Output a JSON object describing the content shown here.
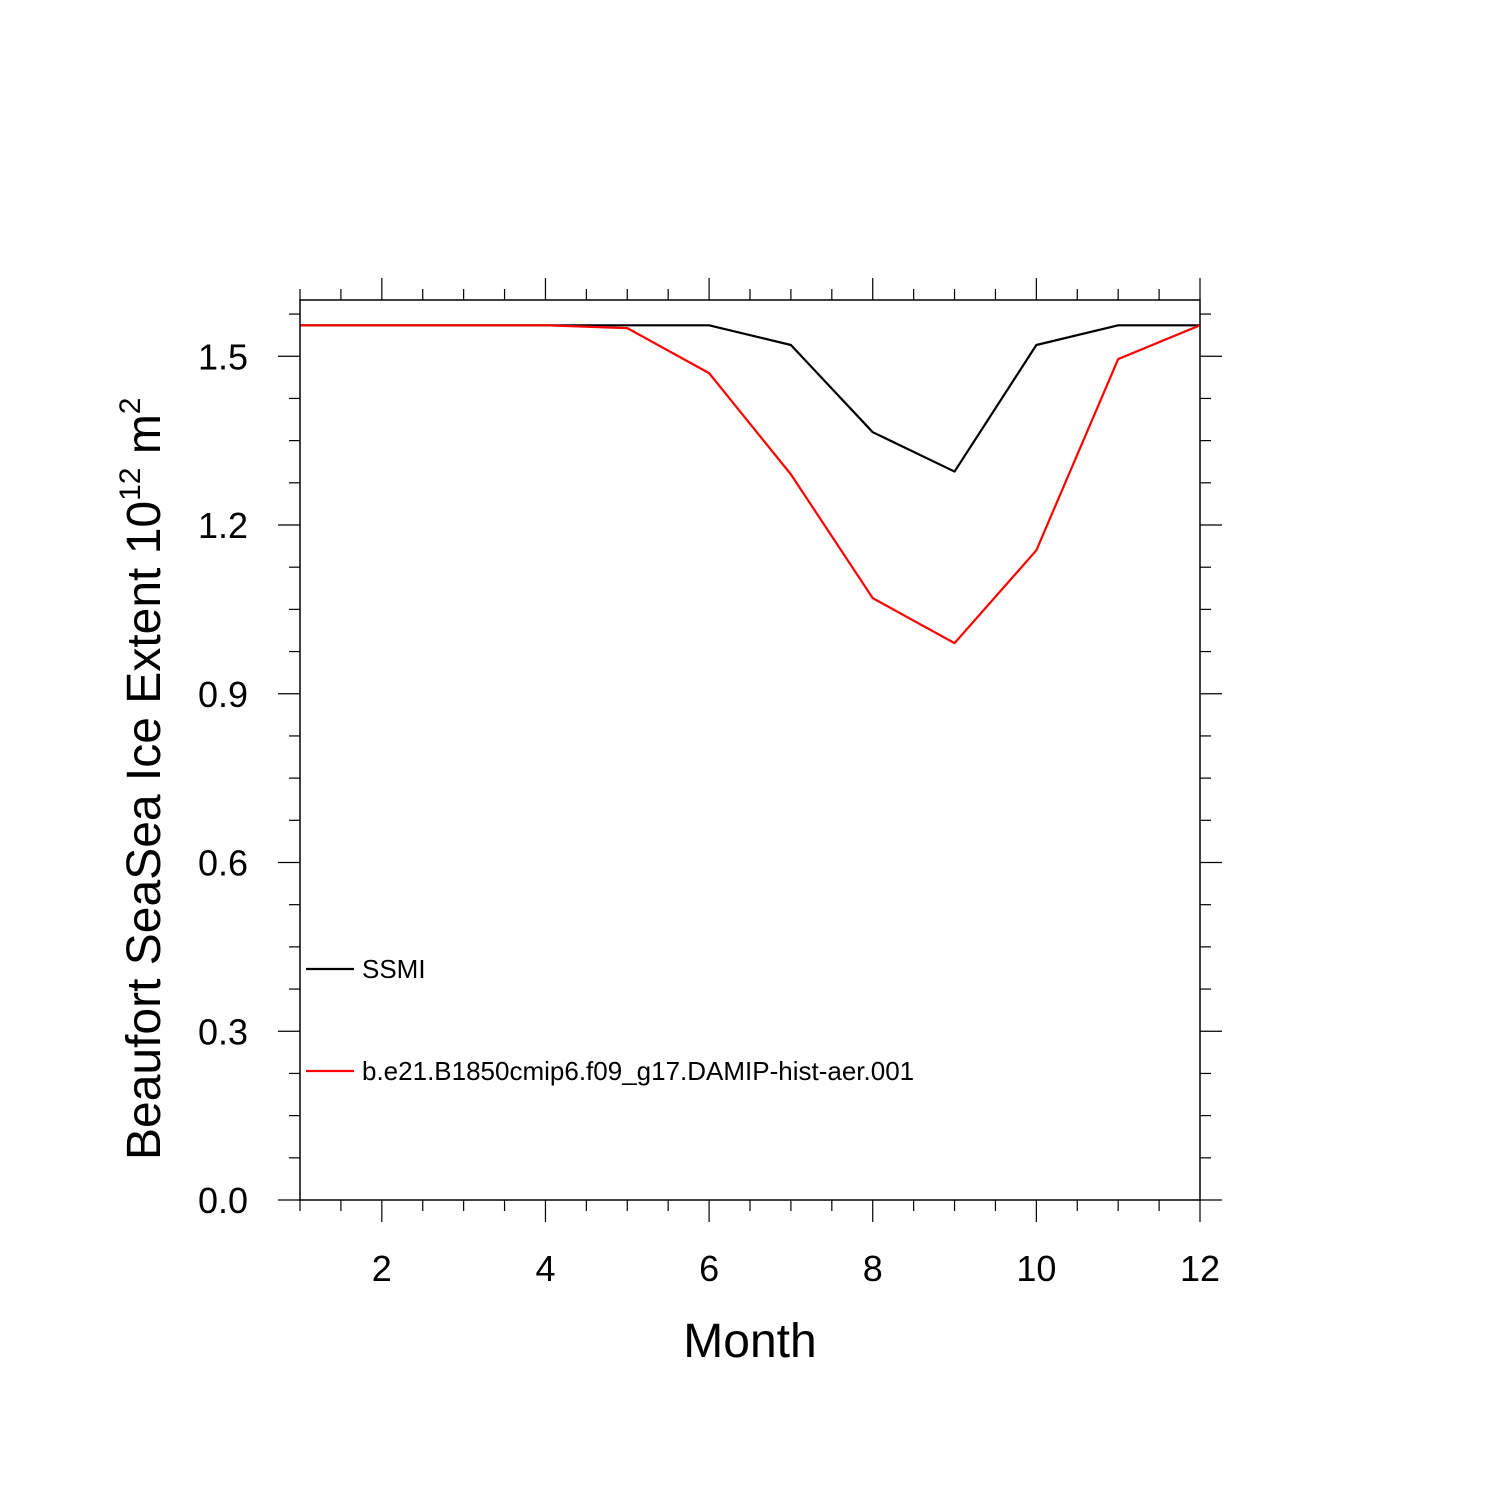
{
  "chart_data": {
    "type": "line",
    "xlabel": "Month",
    "ylabel": {
      "prefix": "Beaufort SeaSea Ice Extent 10",
      "superscript_1": "12",
      "middle": " m",
      "superscript_2": "2"
    },
    "xlim": [
      1,
      12
    ],
    "ylim": [
      0,
      1.6
    ],
    "x_ticks": [
      2,
      4,
      6,
      8,
      10,
      12
    ],
    "x_tick_labels": [
      "2",
      "4",
      "6",
      "8",
      "10",
      "12"
    ],
    "y_ticks": [
      0.0,
      0.3,
      0.6,
      0.9,
      1.2,
      1.5
    ],
    "y_tick_labels": [
      "0.0",
      "0.3",
      "0.6",
      "0.9",
      "1.2",
      "1.5"
    ],
    "x": [
      1,
      2,
      3,
      4,
      5,
      6,
      7,
      8,
      9,
      10,
      11,
      12
    ],
    "series": [
      {
        "name": "SSMI",
        "color": "#000000",
        "values": [
          1.555,
          1.555,
          1.555,
          1.555,
          1.555,
          1.555,
          1.52,
          1.365,
          1.295,
          1.52,
          1.555,
          1.555
        ]
      },
      {
        "name": "b.e21.B1850cmip6.f09_g17.DAMIP-hist-aer.001",
        "color": "#ff0000",
        "values": [
          1.555,
          1.555,
          1.555,
          1.555,
          1.55,
          1.47,
          1.29,
          1.07,
          0.99,
          1.155,
          1.495,
          1.555
        ]
      }
    ],
    "legend_position": "bottom-left",
    "grid": false
  }
}
